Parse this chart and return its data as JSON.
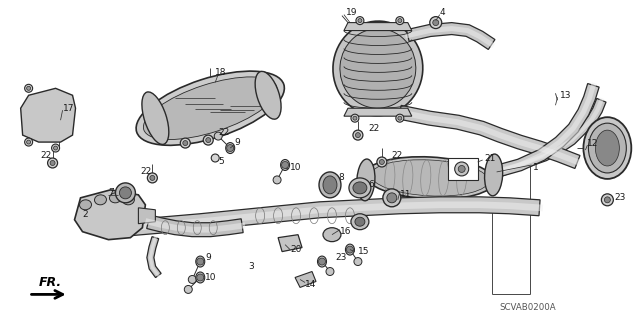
{
  "bg_color": "#ffffff",
  "fig_width": 6.4,
  "fig_height": 3.19,
  "dpi": 100,
  "diagram_code": "SCVAB0200A",
  "line_color": "#2a2a2a",
  "text_color": "#1a1a1a",
  "gray_fill": "#d0d0d0",
  "dark_gray": "#888888",
  "light_gray": "#e8e8e8",
  "part_labels": [
    [
      "1",
      490,
      165
    ],
    [
      "2",
      102,
      213
    ],
    [
      "3",
      242,
      265
    ],
    [
      "4",
      432,
      22
    ],
    [
      "5",
      213,
      162
    ],
    [
      "6",
      355,
      185
    ],
    [
      "7",
      120,
      193
    ],
    [
      "8",
      332,
      175
    ],
    [
      "9",
      198,
      262
    ],
    [
      "10",
      195,
      282
    ],
    [
      "11",
      390,
      195
    ],
    [
      "12",
      600,
      148
    ],
    [
      "13",
      548,
      103
    ],
    [
      "14",
      300,
      285
    ],
    [
      "15",
      355,
      248
    ],
    [
      "16",
      330,
      228
    ],
    [
      "17",
      58,
      110
    ],
    [
      "18",
      188,
      85
    ],
    [
      "19",
      340,
      22
    ],
    [
      "20",
      285,
      245
    ],
    [
      "21",
      455,
      165
    ],
    [
      "22",
      50,
      165
    ],
    [
      "22",
      148,
      178
    ],
    [
      "22",
      210,
      140
    ],
    [
      "22",
      358,
      138
    ],
    [
      "22",
      382,
      165
    ],
    [
      "23",
      605,
      195
    ],
    [
      "23",
      320,
      260
    ],
    [
      "9",
      225,
      148
    ],
    [
      "10",
      282,
      165
    ]
  ]
}
